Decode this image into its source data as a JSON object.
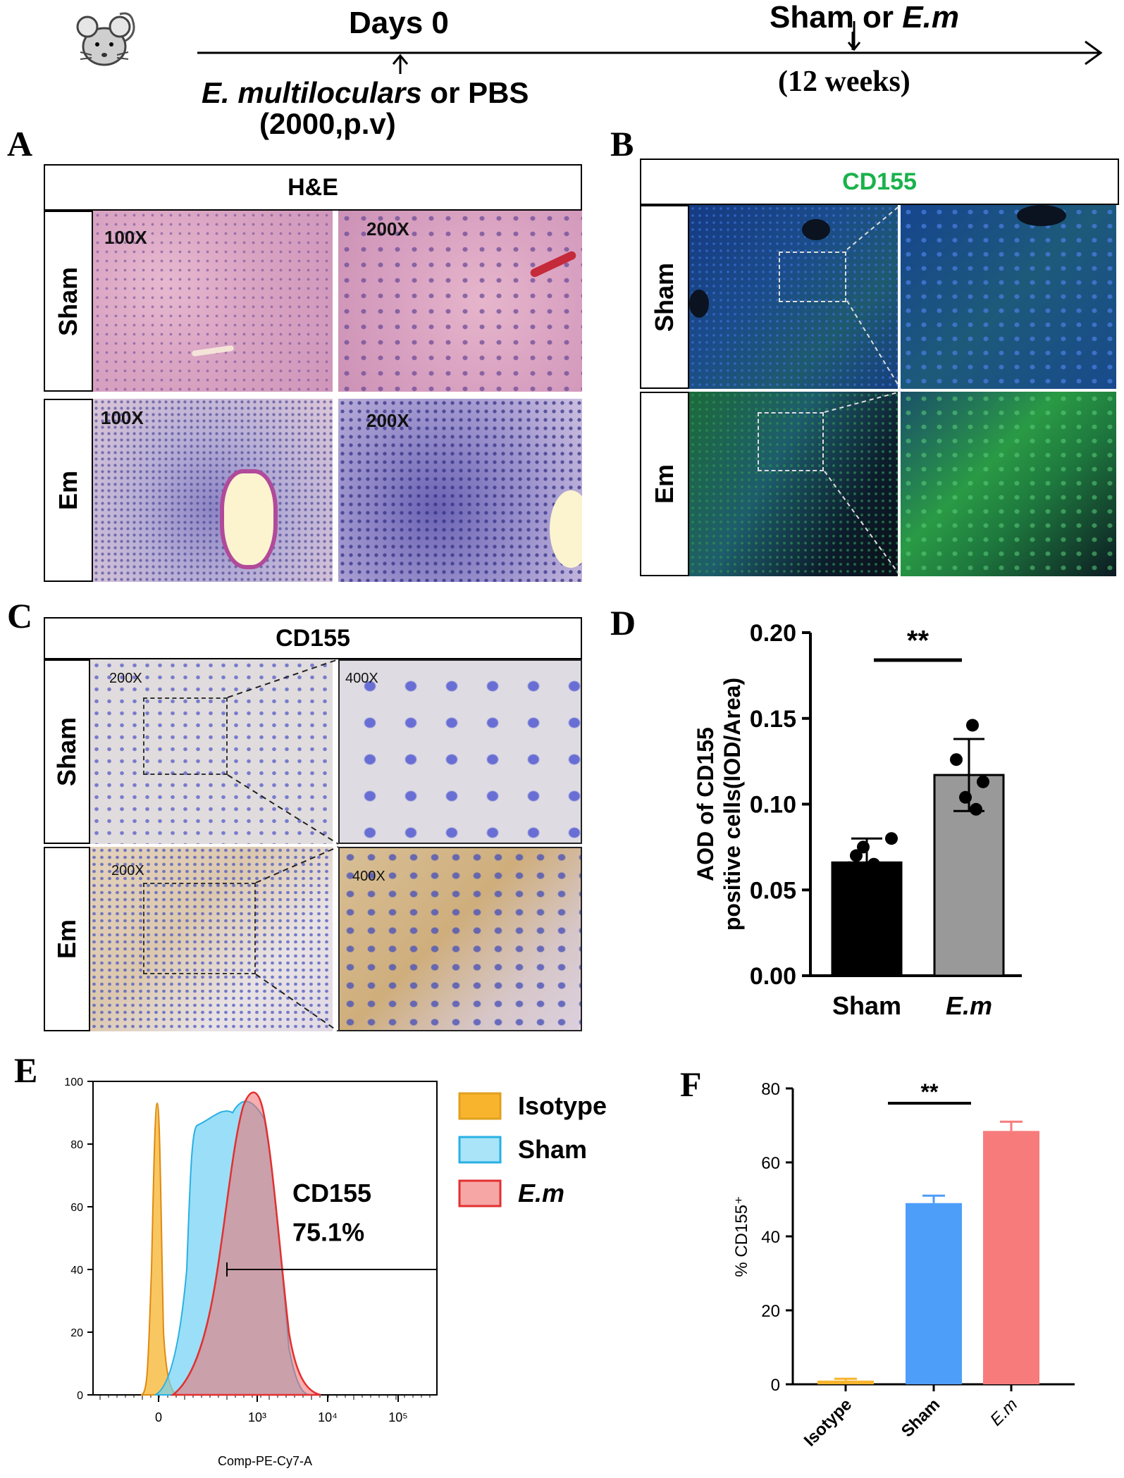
{
  "timeline": {
    "days_label": "Days 0",
    "infection_label_italic": "E. multiloculars",
    "infection_label_rest": " or PBS",
    "dose_label": "(2000,p.v)",
    "endpoint_label_plain": "Sham or ",
    "endpoint_label_italic": "E.m",
    "duration_label": "(12 weeks)"
  },
  "panel_A": {
    "letter": "A",
    "header": "H&E",
    "rows": [
      "Sham",
      "Em"
    ],
    "magnifications": [
      "100X",
      "200X",
      "100X",
      "200X"
    ]
  },
  "panel_B": {
    "letter": "B",
    "header": "CD155",
    "rows": [
      "Sham",
      "Em"
    ]
  },
  "panel_C": {
    "letter": "C",
    "header": "CD155",
    "rows": [
      "Sham",
      "Em"
    ],
    "magnifications": [
      "200X",
      "400X",
      "200X",
      "400X"
    ]
  },
  "panel_D": {
    "letter": "D",
    "significance": "**"
  },
  "panel_E": {
    "letter": "E",
    "xlabel": "Comp-PE-Cy7-A",
    "gate_label_line1": "CD155",
    "gate_label_line2": "75.1%"
  },
  "panel_F": {
    "letter": "F",
    "significance": "**"
  },
  "colors": {
    "he_pink": "#d9a3c2",
    "he_purple": "#6d5aa8",
    "if_blue": "#143c8c",
    "if_green": "#1f8a32",
    "ihc_bg": "#e2dcd8",
    "ihc_brown": "#c8a56a",
    "cd155_green": "#19b24b",
    "isotype": "#f7b42c",
    "sham_cyan": "#6fd2f4",
    "em_red": "#f26b6b",
    "bar_sham_F": "#4d9ef8",
    "bar_em_F": "#f77b7b",
    "bar_sham_D": "#000000",
    "bar_em_D": "#999999"
  },
  "chart_data": [
    {
      "id": "D",
      "type": "bar",
      "categories": [
        "Sham",
        "E.m"
      ],
      "values": [
        0.066,
        0.117
      ],
      "errors": [
        0.014,
        0.021
      ],
      "points": [
        [
          0.08,
          0.075,
          0.07,
          0.065,
          0.063
        ],
        [
          0.146,
          0.126,
          0.113,
          0.104,
          0.097
        ]
      ],
      "ylabel_line1": "AOD of CD155",
      "ylabel_line2": "positive cells(IOD/Area)",
      "ylim": [
        0,
        0.2
      ],
      "yticks": [
        "0.00",
        "0.05",
        "0.10",
        "0.15",
        "0.20"
      ],
      "significance": "**"
    },
    {
      "id": "E",
      "type": "area",
      "xlabel": "Comp-PE-Cy7-A",
      "yticks": [
        "0",
        "20",
        "40",
        "60",
        "80",
        "100"
      ],
      "xticks": [
        "0",
        "10³",
        "10⁴",
        "10⁵"
      ],
      "ylim": [
        0,
        100
      ],
      "series": [
        {
          "name": "Isotype",
          "peak_x": "0",
          "peak_y": 93
        },
        {
          "name": "Sham",
          "peak_y": 96
        },
        {
          "name": "E.m",
          "peak_y": 98
        }
      ],
      "legend_position": "right",
      "gate": {
        "label": "CD155",
        "percent": "75.1%"
      }
    },
    {
      "id": "F",
      "type": "bar",
      "categories": [
        "Isotype",
        "Sham",
        "E.m"
      ],
      "values": [
        1,
        49,
        68.5
      ],
      "errors": [
        0.5,
        2,
        2.5
      ],
      "ylabel": "% CD155⁺",
      "ylim": [
        0,
        80
      ],
      "yticks": [
        "0",
        "20",
        "40",
        "60",
        "80"
      ],
      "significance": "**"
    }
  ]
}
